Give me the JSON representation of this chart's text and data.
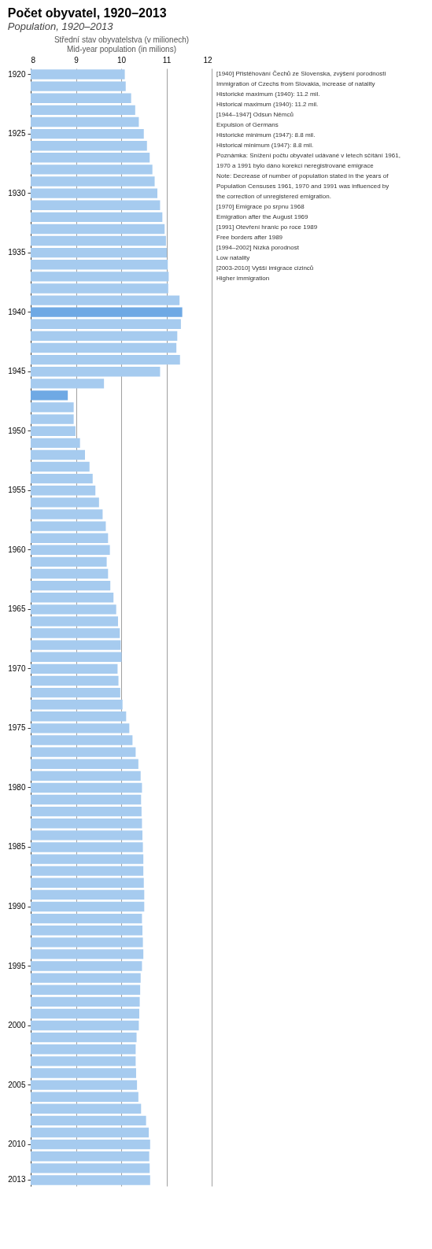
{
  "chart_data": {
    "type": "bar",
    "orientation": "horizontal",
    "title": "Počet obyvatel, 1920–2013",
    "subtitle": "Population, 1920–2013",
    "xlabel": "Střední stav obyvatelstva (v milionech)",
    "categories": [
      "1920",
      null,
      null,
      null,
      null,
      "1925",
      null,
      null,
      null,
      null,
      "1930",
      null,
      null,
      null,
      null,
      "1935",
      null,
      null,
      null,
      null,
      "1940",
      null,
      null,
      null,
      null,
      "1945",
      null,
      null,
      null,
      null,
      "1950",
      null,
      null,
      null,
      null,
      "1955",
      null,
      null,
      null,
      null,
      "1960",
      null,
      null,
      null,
      null,
      "1965",
      null,
      null,
      null,
      null,
      "1970",
      null,
      null,
      null,
      null,
      "1975",
      null,
      null,
      null,
      null,
      "1980",
      null,
      null,
      null,
      null,
      "1985",
      null,
      null,
      null,
      null,
      "1990",
      null,
      null,
      null,
      null,
      "1995",
      null,
      null,
      null,
      null,
      "2000",
      null,
      null,
      null,
      null,
      "2005",
      null,
      null,
      null,
      null,
      "2010",
      null,
      null,
      "2013"
    ],
    "values": [
      10.08,
      10.1,
      10.22,
      10.31,
      10.39,
      10.5,
      10.57,
      10.63,
      10.69,
      10.74,
      10.8,
      10.86,
      10.91,
      10.96,
      10.99,
      11.01,
      11.03,
      11.05,
      11.04,
      11.29,
      11.35,
      11.32,
      11.24,
      11.22,
      11.3,
      10.86,
      9.62,
      8.82,
      8.95,
      8.95,
      8.99,
      9.09,
      9.2,
      9.3,
      9.37,
      9.43,
      9.51,
      9.59,
      9.66,
      9.71,
      9.75,
      9.68,
      9.71,
      9.76,
      9.83,
      9.89,
      9.93,
      9.97,
      9.99,
      10.01,
      9.92,
      9.94,
      9.98,
      10.03,
      10.11,
      10.18,
      10.25,
      10.32,
      10.38,
      10.43,
      10.46,
      10.44,
      10.45,
      10.46,
      10.47,
      10.48,
      10.49,
      10.49,
      10.5,
      10.51,
      10.51,
      10.46,
      10.47,
      10.48,
      10.49,
      10.46,
      10.43,
      10.42,
      10.41,
      10.4,
      10.39,
      10.34,
      10.32,
      10.32,
      10.33,
      10.35,
      10.38,
      10.44,
      10.55,
      10.61,
      10.64,
      10.62,
      10.63,
      10.64
    ],
    "colors": [
      "#a6cbef",
      "#a6cbef",
      "#a6cbef",
      "#a6cbef",
      "#a6cbef",
      "#a6cbef",
      "#a6cbef",
      "#a6cbef",
      "#a6cbef",
      "#a6cbef",
      "#a6cbef",
      "#a6cbef",
      "#a6cbef",
      "#a6cbef",
      "#a6cbef",
      "#a6cbef",
      "#a6cbef",
      "#a6cbef",
      "#a6cbef",
      "#a6cbef",
      "#6fa9e4",
      "#a6cbef",
      "#a6cbef",
      "#a6cbef",
      "#a6cbef",
      "#a6cbef",
      "#a6cbef",
      "#6fa9e4",
      "#a6cbef",
      "#a6cbef",
      "#a6cbef",
      "#a6cbef",
      "#a6cbef",
      "#a6cbef",
      "#a6cbef",
      "#a6cbef",
      "#a6cbef",
      "#a6cbef",
      "#a6cbef",
      "#a6cbef",
      "#a6cbef",
      "#a6cbef",
      "#a6cbef",
      "#a6cbef",
      "#a6cbef",
      "#a6cbef",
      "#a6cbef",
      "#a6cbef",
      "#a6cbef",
      "#a6cbef",
      "#a6cbef",
      "#a6cbef",
      "#a6cbef",
      "#a6cbef",
      "#a6cbef",
      "#a6cbef",
      "#a6cbef",
      "#a6cbef",
      "#a6cbef",
      "#a6cbef",
      "#a6cbef",
      "#a6cbef",
      "#a6cbef",
      "#a6cbef",
      "#a6cbef",
      "#a6cbef",
      "#a6cbef",
      "#a6cbef",
      "#a6cbef",
      "#a6cbef",
      "#a6cbef",
      "#a6cbef",
      "#a6cbef",
      "#a6cbef",
      "#a6cbef",
      "#a6cbef",
      "#a6cbef",
      "#a6cbef",
      "#a6cbef",
      "#a6cbef",
      "#a6cbef",
      "#a6cbef",
      "#a6cbef",
      "#a6cbef",
      "#a6cbef",
      "#a6cbef",
      "#a6cbef",
      "#a6cbef",
      "#a6cbef",
      "#a6cbef",
      "#a6cbef",
      "#a6cbef",
      "#a6cbef",
      "#a6cbef"
    ],
    "xlim": [
      8,
      12
    ],
    "xticks": [
      8,
      9,
      10,
      11,
      12
    ],
    "grid": "x",
    "annotations": [
      "Mid-year population (in milions)",
      "[1940] Přistěhování Čechů ze Slovenska, zvýšení porodnosti",
      "Immigration of Czechs from Slovakia, increase of natality",
      "Historické maximum (1940): 11.2 mil.",
      "Historical maximum (1940): 11.2 mil.",
      "[1944–1947] Odsun Němců",
      "Expulsion of Germans",
      "Historické minimum (1947): 8.8 mil.",
      "Historical minimum (1947): 8.8 mil.",
      "Poznámka: Snížení počtu obyvatel udávané v letech sčítání 1961,",
      "1970 a 1991 bylo dáno korekcí neregistrované emigrace",
      "Note: Decrease of number of population stated in the years of",
      "Population Censuses 1961, 1970 and 1991 was influenced by",
      "the correction of unregistered emigration.",
      "[1970] Emigrace po srpnu 1968",
      "Emigration after the August 1969",
      "[1991] Otevření hranic po roce 1989",
      "Free borders after 1989",
      "[1994–2002] Nízká porodnost",
      "Low natality",
      "[2003-2010] Vyšší imigrace cizinců",
      "Higher immigration"
    ]
  }
}
